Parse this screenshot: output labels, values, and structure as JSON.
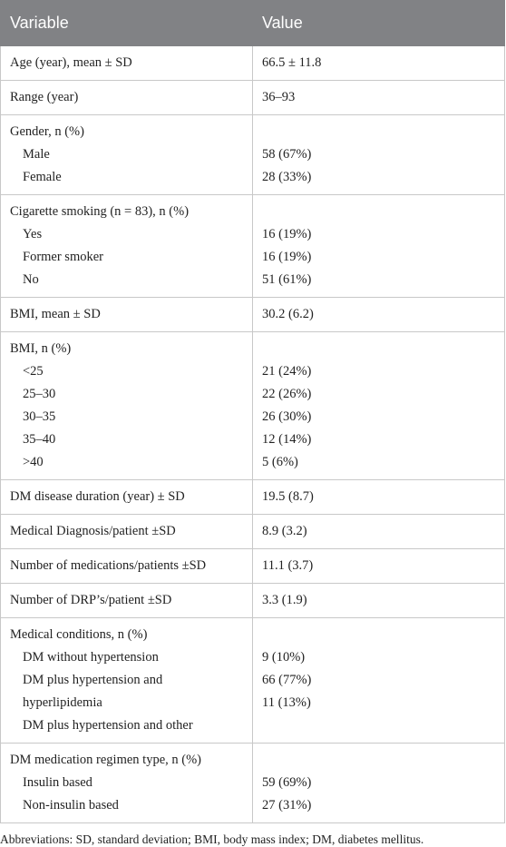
{
  "table": {
    "header": [
      "Variable",
      "Value"
    ],
    "groups": [
      {
        "label": "Age (year), mean ± SD",
        "value": "66.5 ± 11.8"
      },
      {
        "label": "Range (year)",
        "value": "36–93"
      },
      {
        "label": "Gender, n (%)",
        "items": [
          [
            "Male",
            "58 (67%)"
          ],
          [
            "Female",
            "28 (33%)"
          ]
        ]
      },
      {
        "label": "Cigarette smoking (n = 83), n (%)",
        "items": [
          [
            "Yes",
            "16 (19%)"
          ],
          [
            "Former smoker",
            "16 (19%)"
          ],
          [
            "No",
            "51 (61%)"
          ]
        ]
      },
      {
        "label": "BMI, mean ± SD",
        "value": "30.2 (6.2)"
      },
      {
        "label": "BMI, n (%)",
        "items": [
          [
            "<25",
            "21 (24%)"
          ],
          [
            "25–30",
            "22 (26%)"
          ],
          [
            "30–35",
            "26 (30%)"
          ],
          [
            "35–40",
            "12 (14%)"
          ],
          [
            ">40",
            "5 (6%)"
          ]
        ]
      },
      {
        "label": "DM disease duration (year) ± SD",
        "value": "19.5 (8.7)"
      },
      {
        "label": "Medical Diagnosis/patient ±SD",
        "value": "8.9 (3.2)"
      },
      {
        "label": "Number of medications/patients ±SD",
        "value": "11.1 (3.7)"
      },
      {
        "label": "Number of DRP’s/patient ±SD",
        "value": "3.3 (1.9)"
      },
      {
        "label": "Medical conditions, n (%)",
        "items": [
          [
            "DM without hypertension",
            "9 (10%)"
          ],
          [
            "DM plus hypertension and hyperlipidemia",
            "66 (77%)"
          ],
          [
            "DM plus hypertension and other",
            "11 (13%)"
          ]
        ]
      },
      {
        "label": "DM medication regimen type, n (%)",
        "items": [
          [
            "Insulin based",
            "59 (69%)"
          ],
          [
            "Non-insulin based",
            "27 (31%)"
          ]
        ]
      }
    ]
  },
  "footnote": "Abbreviations: SD, standard deviation; BMI, body mass index; DM, diabetes mellitus."
}
